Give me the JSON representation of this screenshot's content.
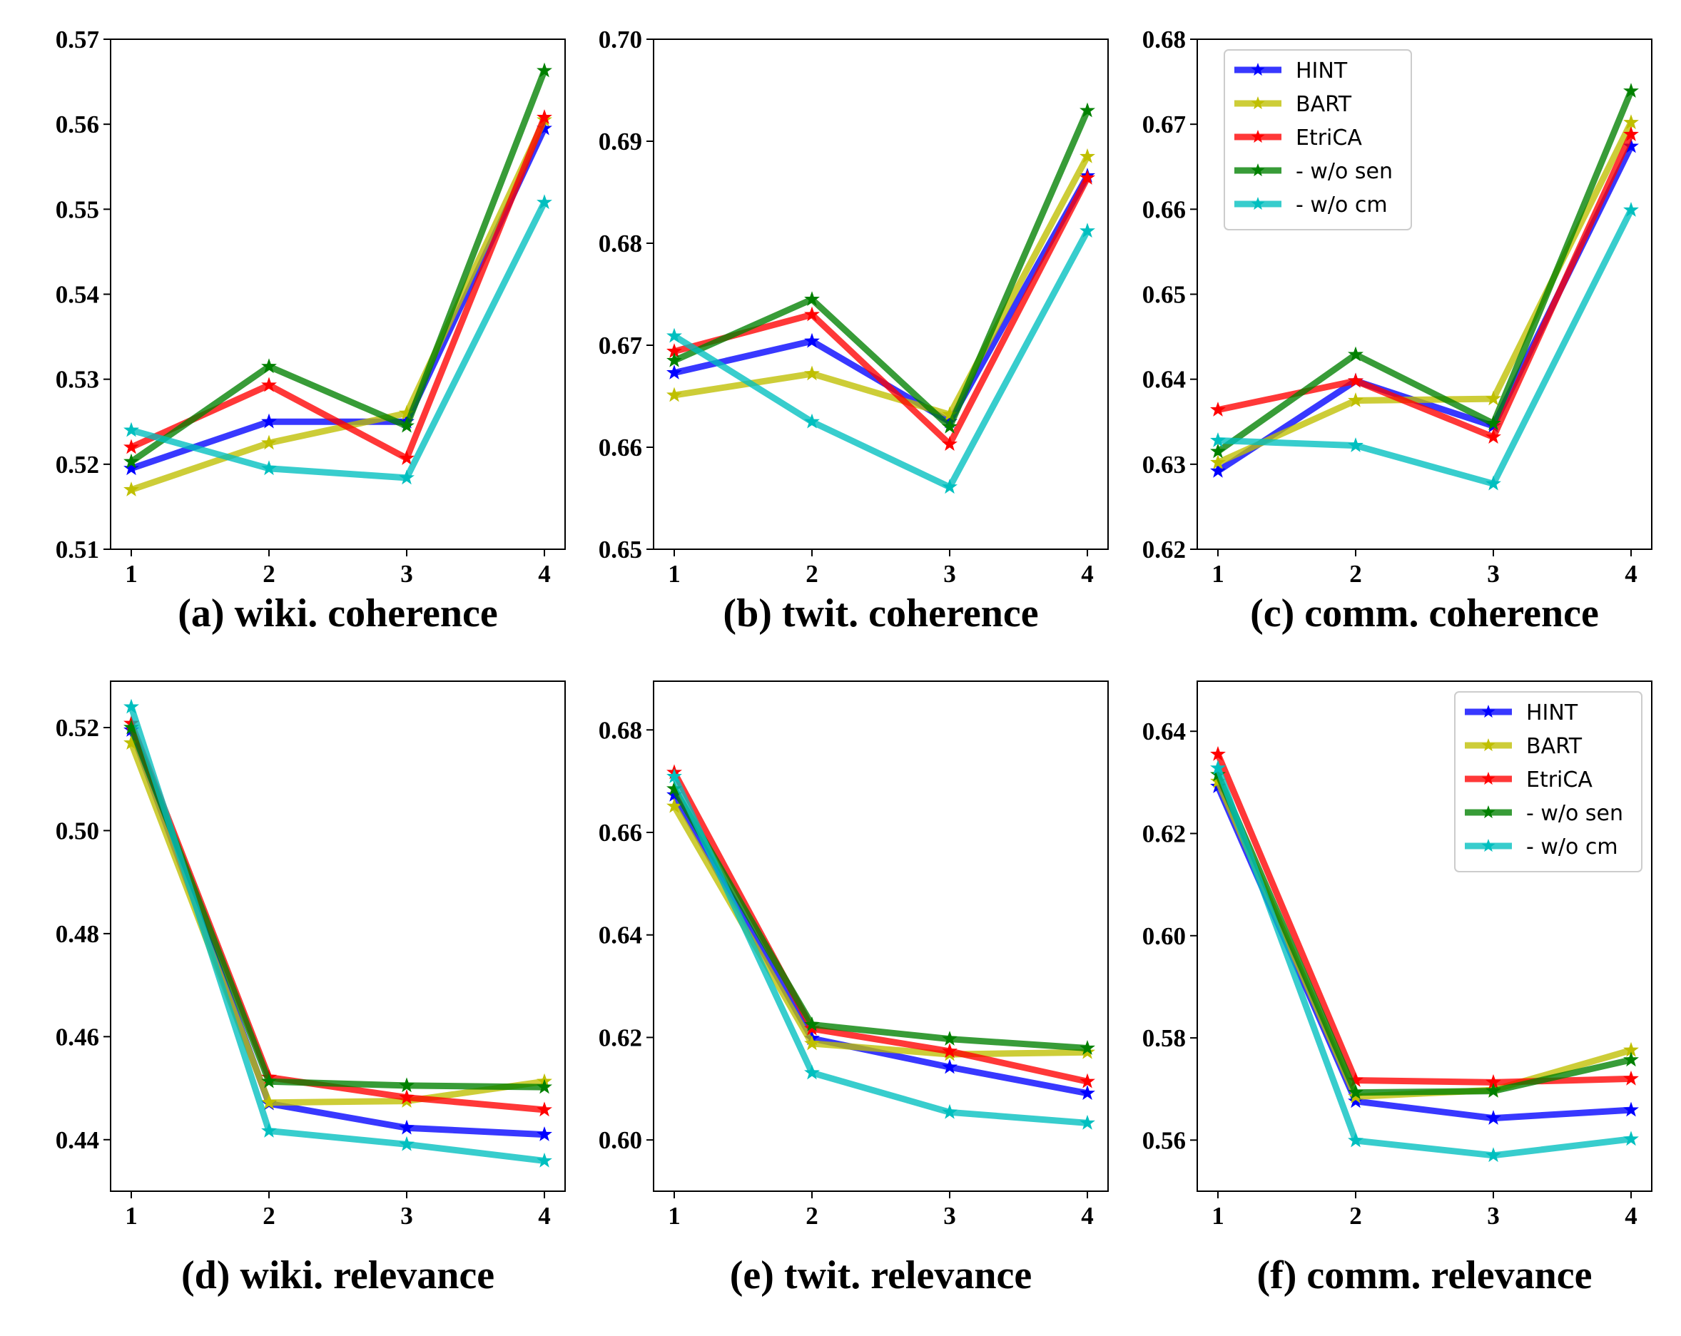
{
  "series_style": {
    "HINT": {
      "color": "#0000ff"
    },
    "BART": {
      "color": "#bfbf00"
    },
    "EtriCA": {
      "color": "#ff0000"
    },
    "- w/o sen": {
      "color": "#008000"
    },
    "- w/o cm": {
      "color": "#00bfbf"
    }
  },
  "chart_data": [
    {
      "type": "line",
      "title": "(a) wiki. coherence",
      "x": [
        1,
        2,
        3,
        4
      ],
      "ylim": [
        0.51,
        0.57
      ],
      "yticks": [
        "0.51",
        "0.52",
        "0.53",
        "0.54",
        "0.55",
        "0.56",
        "0.57"
      ],
      "legend": null,
      "series": [
        {
          "name": "HINT",
          "values": [
            0.5195,
            0.525,
            0.525,
            0.5595
          ]
        },
        {
          "name": "BART",
          "values": [
            0.517,
            0.5225,
            0.526,
            0.5605
          ]
        },
        {
          "name": "EtriCA",
          "values": [
            0.522,
            0.5293,
            0.5207,
            0.5608
          ]
        },
        {
          "name": "- w/o sen",
          "values": [
            0.5203,
            0.5315,
            0.5245,
            0.5663
          ]
        },
        {
          "name": "- w/o cm",
          "values": [
            0.524,
            0.5195,
            0.5184,
            0.5508
          ]
        }
      ]
    },
    {
      "type": "line",
      "title": "(b) twit. coherence",
      "x": [
        1,
        2,
        3,
        4
      ],
      "ylim": [
        0.65,
        0.7
      ],
      "yticks": [
        "0.65",
        "0.66",
        "0.67",
        "0.68",
        "0.69",
        "0.70"
      ],
      "legend": null,
      "series": [
        {
          "name": "HINT",
          "values": [
            0.6673,
            0.6704,
            0.6625,
            0.6866
          ]
        },
        {
          "name": "BART",
          "values": [
            0.6651,
            0.6672,
            0.6632,
            0.6885
          ]
        },
        {
          "name": "EtriCA",
          "values": [
            0.6694,
            0.673,
            0.6603,
            0.6864
          ]
        },
        {
          "name": "- w/o sen",
          "values": [
            0.6685,
            0.6745,
            0.662,
            0.693
          ]
        },
        {
          "name": "- w/o cm",
          "values": [
            0.6709,
            0.6625,
            0.6561,
            0.6812
          ]
        }
      ]
    },
    {
      "type": "line",
      "title": "(c) comm. coherence",
      "x": [
        1,
        2,
        3,
        4
      ],
      "ylim": [
        0.62,
        0.68
      ],
      "yticks": [
        "0.62",
        "0.63",
        "0.64",
        "0.65",
        "0.66",
        "0.67",
        "0.68"
      ],
      "legend": "upper left",
      "series": [
        {
          "name": "HINT",
          "values": [
            0.6292,
            0.6398,
            0.6345,
            0.6674
          ]
        },
        {
          "name": "BART",
          "values": [
            0.6302,
            0.6375,
            0.6377,
            0.6702
          ]
        },
        {
          "name": "EtriCA",
          "values": [
            0.6364,
            0.6398,
            0.6332,
            0.6688
          ]
        },
        {
          "name": "- w/o sen",
          "values": [
            0.6315,
            0.6429,
            0.6348,
            0.6739
          ]
        },
        {
          "name": "- w/o cm",
          "values": [
            0.6328,
            0.6322,
            0.6277,
            0.6599
          ]
        }
      ]
    },
    {
      "type": "line",
      "title": "(d) wiki. relevance",
      "x": [
        1,
        2,
        3,
        4
      ],
      "ylim": [
        0.43,
        0.529
      ],
      "yticks": [
        "0.44",
        "0.46",
        "0.48",
        "0.50",
        "0.52"
      ],
      "legend": null,
      "series": [
        {
          "name": "HINT",
          "values": [
            0.5195,
            0.447,
            0.4423,
            0.441
          ]
        },
        {
          "name": "BART",
          "values": [
            0.517,
            0.4472,
            0.4475,
            0.4513
          ]
        },
        {
          "name": "EtriCA",
          "values": [
            0.5208,
            0.4521,
            0.4482,
            0.4458
          ]
        },
        {
          "name": "- w/o sen",
          "values": [
            0.52,
            0.4513,
            0.4505,
            0.4502
          ]
        },
        {
          "name": "- w/o cm",
          "values": [
            0.524,
            0.4417,
            0.4391,
            0.4359
          ]
        }
      ]
    },
    {
      "type": "line",
      "title": "(e) twit. relevance",
      "x": [
        1,
        2,
        3,
        4
      ],
      "ylim": [
        0.59,
        0.6895
      ],
      "yticks": [
        "0.60",
        "0.62",
        "0.64",
        "0.66",
        "0.68"
      ],
      "legend": null,
      "series": [
        {
          "name": "HINT",
          "values": [
            0.6673,
            0.6198,
            0.6142,
            0.6091
          ]
        },
        {
          "name": "BART",
          "values": [
            0.6651,
            0.6188,
            0.6167,
            0.6171
          ]
        },
        {
          "name": "EtriCA",
          "values": [
            0.6717,
            0.6217,
            0.6173,
            0.6114
          ]
        },
        {
          "name": "- w/o sen",
          "values": [
            0.6685,
            0.6225,
            0.6197,
            0.6179
          ]
        },
        {
          "name": "- w/o cm",
          "values": [
            0.6709,
            0.6131,
            0.6054,
            0.6033
          ]
        }
      ]
    },
    {
      "type": "line",
      "title": "(f) comm. relevance",
      "x": [
        1,
        2,
        3,
        4
      ],
      "ylim": [
        0.55,
        0.6498
      ],
      "yticks": [
        "0.56",
        "0.58",
        "0.60",
        "0.62",
        "0.64"
      ],
      "legend": "upper right",
      "series": [
        {
          "name": "HINT",
          "values": [
            0.6292,
            0.5676,
            0.5643,
            0.5659
          ]
        },
        {
          "name": "BART",
          "values": [
            0.6302,
            0.5685,
            0.5698,
            0.5776
          ]
        },
        {
          "name": "EtriCA",
          "values": [
            0.6355,
            0.5717,
            0.5713,
            0.572
          ]
        },
        {
          "name": "- w/o sen",
          "values": [
            0.6315,
            0.5693,
            0.5696,
            0.5757
          ]
        },
        {
          "name": "- w/o cm",
          "values": [
            0.6328,
            0.5599,
            0.557,
            0.5602
          ]
        }
      ]
    }
  ]
}
